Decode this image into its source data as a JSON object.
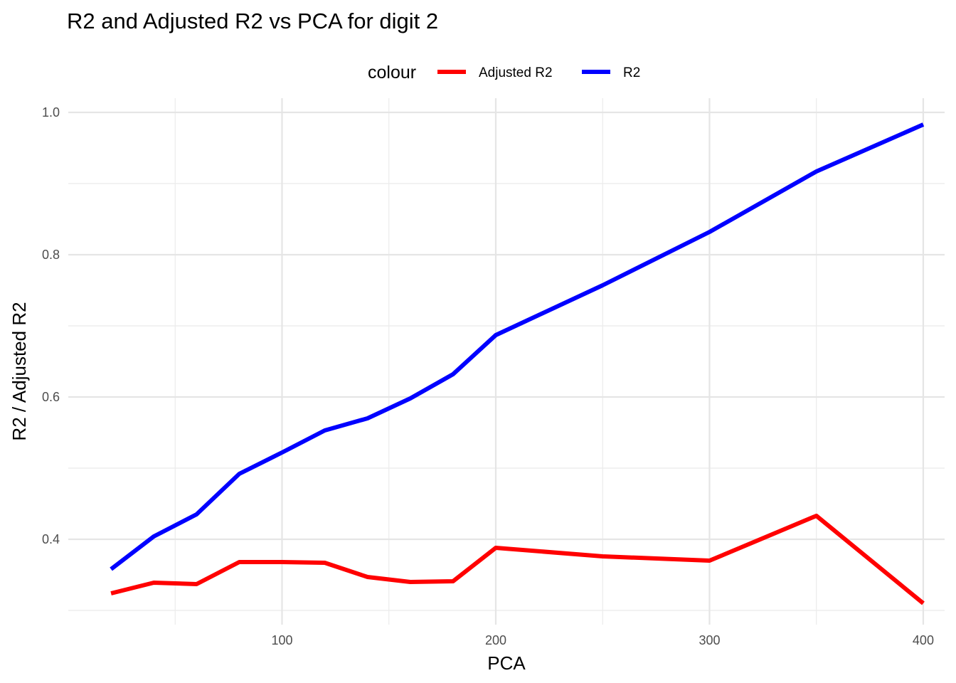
{
  "chart_data": {
    "type": "line",
    "title": "R2 and Adjusted R2 vs PCA for digit 2",
    "xlabel": "PCA",
    "ylabel": "R2 / Adjusted R2",
    "xlim": [
      0,
      410
    ],
    "ylim": [
      0.28,
      1.02
    ],
    "x_ticks": [
      100,
      200,
      300,
      400
    ],
    "y_ticks": [
      0.4,
      0.6,
      0.8,
      1.0
    ],
    "x_tick_labels": [
      "100",
      "200",
      "300",
      "400"
    ],
    "y_tick_labels": [
      "0.4",
      "0.6",
      "0.8",
      "1.0"
    ],
    "grid": true,
    "legend_position": "top",
    "legend_title": "colour",
    "x": [
      20,
      40,
      60,
      80,
      100,
      120,
      140,
      160,
      180,
      200,
      250,
      300,
      350,
      400
    ],
    "series": [
      {
        "name": "Adjusted R2",
        "color": "#ff0000",
        "values": [
          0.324,
          0.339,
          0.337,
          0.368,
          0.368,
          0.367,
          0.347,
          0.34,
          0.341,
          0.388,
          0.376,
          0.37,
          0.433,
          0.31
        ]
      },
      {
        "name": "R2",
        "color": "#0000ff",
        "values": [
          0.358,
          0.404,
          0.435,
          0.492,
          0.522,
          0.553,
          0.57,
          0.598,
          0.632,
          0.687,
          0.757,
          0.832,
          0.917,
          0.983
        ]
      }
    ]
  }
}
